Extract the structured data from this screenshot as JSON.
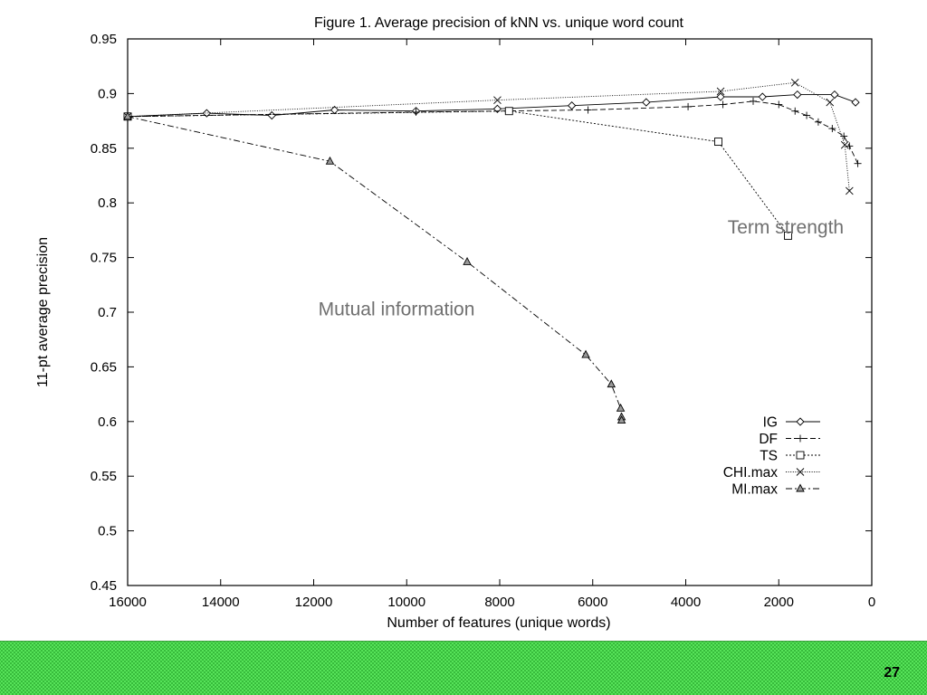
{
  "chart_data": {
    "type": "line",
    "title": "Figure 1. Average precision of kNN vs. unique word count",
    "xlabel": "Number of features (unique words)",
    "ylabel": "11-pt average precision",
    "xlim": [
      16000,
      0
    ],
    "ylim": [
      0.45,
      0.95
    ],
    "x_reversed": true,
    "xticks": [
      16000,
      14000,
      12000,
      10000,
      8000,
      6000,
      4000,
      2000,
      0
    ],
    "yticks": [
      0.45,
      0.5,
      0.55,
      0.6,
      0.65,
      0.7,
      0.75,
      0.8,
      0.85,
      0.9,
      0.95
    ],
    "x_tick_labels": [
      "16000",
      "14000",
      "12000",
      "10000",
      "8000",
      "6000",
      "4000",
      "2000",
      "0"
    ],
    "y_tick_labels": [
      "0.45",
      "0.5",
      "0.55",
      "0.6",
      "0.65",
      "0.7",
      "0.75",
      "0.8",
      "0.85",
      "0.9",
      "0.95"
    ],
    "grid": false,
    "legend_position": "bottom-right",
    "series": [
      {
        "name": "IG",
        "marker": "diamond",
        "dash": "solid",
        "points": [
          [
            16000,
            0.879
          ],
          [
            14300,
            0.882
          ],
          [
            12900,
            0.88
          ],
          [
            11550,
            0.885
          ],
          [
            9800,
            0.884
          ],
          [
            8050,
            0.886
          ],
          [
            6450,
            0.889
          ],
          [
            4850,
            0.892
          ],
          [
            3250,
            0.897
          ],
          [
            2350,
            0.897
          ],
          [
            1600,
            0.899
          ],
          [
            800,
            0.899
          ],
          [
            350,
            0.892
          ]
        ]
      },
      {
        "name": "DF",
        "marker": "plus",
        "dash": "dashed",
        "points": [
          [
            16000,
            0.879
          ],
          [
            9800,
            0.883
          ],
          [
            6100,
            0.885
          ],
          [
            3950,
            0.888
          ],
          [
            3200,
            0.89
          ],
          [
            2550,
            0.893
          ],
          [
            2000,
            0.89
          ],
          [
            1650,
            0.884
          ],
          [
            1400,
            0.88
          ],
          [
            1150,
            0.874
          ],
          [
            850,
            0.868
          ],
          [
            600,
            0.861
          ],
          [
            480,
            0.852
          ],
          [
            300,
            0.836
          ]
        ]
      },
      {
        "name": "TS",
        "marker": "square",
        "dash": "dotted",
        "points": [
          [
            16000,
            0.879
          ],
          [
            7800,
            0.884
          ],
          [
            3300,
            0.856
          ],
          [
            1800,
            0.77
          ]
        ]
      },
      {
        "name": "CHI.max",
        "marker": "x",
        "dash": "dotted-fine",
        "points": [
          [
            16000,
            0.879
          ],
          [
            8050,
            0.894
          ],
          [
            3250,
            0.902
          ],
          [
            1650,
            0.91
          ],
          [
            900,
            0.892
          ],
          [
            580,
            0.853
          ],
          [
            480,
            0.811
          ]
        ]
      },
      {
        "name": "MI.max",
        "marker": "triangle",
        "dash": "dashdot",
        "points": [
          [
            16000,
            0.879
          ],
          [
            11650,
            0.838
          ],
          [
            8700,
            0.746
          ],
          [
            6150,
            0.661
          ],
          [
            5600,
            0.634
          ],
          [
            5400,
            0.612
          ],
          [
            5380,
            0.604
          ],
          [
            5380,
            0.601
          ]
        ]
      }
    ],
    "annotations": [
      {
        "text": "Term strength",
        "x": 3100,
        "y": 0.772,
        "color": "#707070"
      },
      {
        "text": "Mutual information",
        "x": 11900,
        "y": 0.697,
        "color": "#707070"
      }
    ]
  },
  "footer": {
    "page_number": "27",
    "background_color": "#57e35a"
  }
}
